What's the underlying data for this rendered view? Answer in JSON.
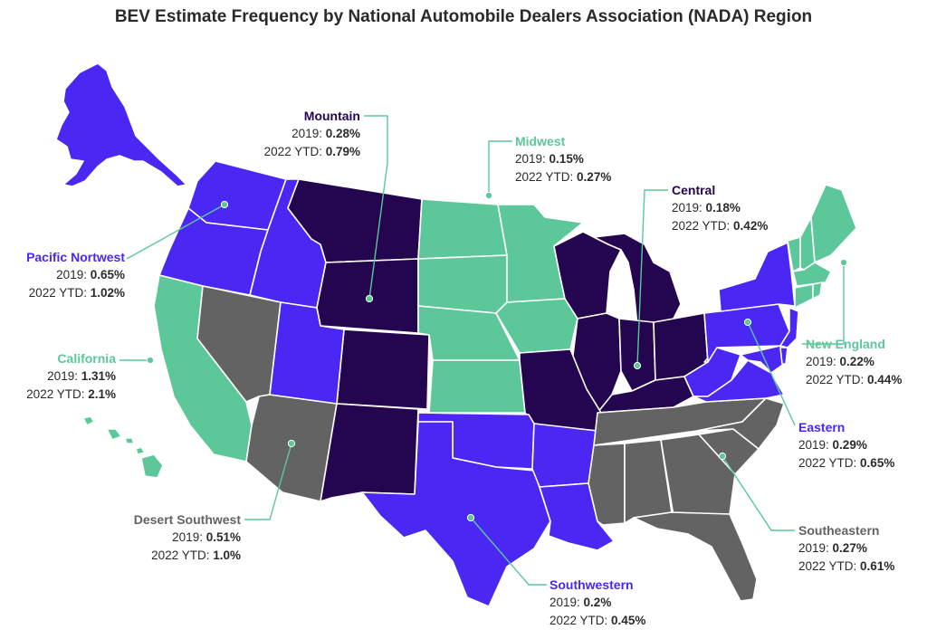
{
  "title": "BEV Estimate Frequency by National Automobile Dealers Association (NADA) Region",
  "colors": {
    "purple": "#4a27f2",
    "dark": "#24054f",
    "green": "#5cc89a",
    "gray": "#636363"
  },
  "regions": [
    {
      "id": "pacific-northwest",
      "name": "Pacific Nortwest",
      "color": "#4a27f2",
      "label_2019": "2019: ",
      "value_2019": "0.65%",
      "label_2022": "2022 YTD: ",
      "value_2022": "1.02%"
    },
    {
      "id": "california",
      "name": "California",
      "color": "#5cc89a",
      "label_2019": "2019: ",
      "value_2019": "1.31%",
      "label_2022": "2022 YTD: ",
      "value_2022": "2.1%"
    },
    {
      "id": "desert-southwest",
      "name": "Desert Southwest",
      "color": "#636363",
      "label_2019": "2019: ",
      "value_2019": "0.51%",
      "label_2022": "2022 YTD: ",
      "value_2022": "1.0%"
    },
    {
      "id": "mountain",
      "name": "Mountain",
      "color": "#24054f",
      "label_2019": "2019: ",
      "value_2019": "0.28%",
      "label_2022": "2022 YTD: ",
      "value_2022": "0.79%"
    },
    {
      "id": "midwest",
      "name": "Midwest",
      "color": "#5cc89a",
      "label_2019": "2019: ",
      "value_2019": "0.15%",
      "label_2022": "2022 YTD: ",
      "value_2022": "0.27%"
    },
    {
      "id": "central",
      "name": "Central",
      "color": "#24054f",
      "label_2019": "2019: ",
      "value_2019": "0.18%",
      "label_2022": "2022 YTD: ",
      "value_2022": "0.42%"
    },
    {
      "id": "new-england",
      "name": "New England",
      "color": "#5cc89a",
      "label_2019": "2019: ",
      "value_2019": "0.22%",
      "label_2022": "2022 YTD: ",
      "value_2022": "0.44%"
    },
    {
      "id": "eastern",
      "name": "Eastern",
      "color": "#4a27f2",
      "label_2019": "2019: ",
      "value_2019": "0.29%",
      "label_2022": "2022 YTD: ",
      "value_2022": "0.65%"
    },
    {
      "id": "southeastern",
      "name": "Southeastern",
      "color": "#636363",
      "label_2019": "2019: ",
      "value_2019": "0.27%",
      "label_2022": "2022 YTD: ",
      "value_2022": "0.61%"
    },
    {
      "id": "southwestern",
      "name": "Southwestern",
      "color": "#4a27f2",
      "label_2019": "2019: ",
      "value_2019": "0.2%",
      "label_2022": "2022 YTD: ",
      "value_2022": "0.45%"
    }
  ]
}
